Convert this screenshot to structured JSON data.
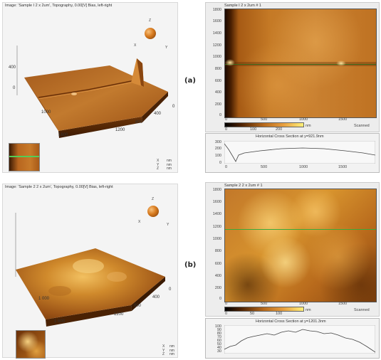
{
  "panel_a": {
    "label": "(a)",
    "surface3d": {
      "header": "Image: 'Sample I 2 x 2um', Topography, 0.00[V] Bias, left-right",
      "z_ticks": [
        "400",
        "0"
      ],
      "x_ticks": [
        "1000",
        "1600"
      ],
      "y_ticks": [
        "0",
        "400",
        "800",
        "1200"
      ],
      "orient": {
        "z": "Z",
        "x": "X",
        "y": "Y"
      },
      "units": [
        "X",
        "Y",
        "Z"
      ],
      "unit_values": [
        "nm",
        "nm",
        "nm"
      ]
    },
    "map": {
      "title": "Sample I 2 x 2um # 1",
      "y_ticks": [
        "1800",
        "1600",
        "1400",
        "1200",
        "1000",
        "800",
        "600",
        "400",
        "200",
        "0"
      ],
      "x_ticks": [
        "0",
        "500",
        "1000",
        "1500"
      ],
      "colorbar_ticks": [
        "0",
        "100",
        "200"
      ],
      "colorbar_unit": "nm",
      "scanned": "Scanned"
    },
    "cross_section": {
      "title": "Horizontal Cross Section at y=921.9nm",
      "y_ticks": [
        "300",
        "200",
        "100",
        "0"
      ],
      "x_ticks": [
        "0",
        "500",
        "1000",
        "1500"
      ]
    }
  },
  "panel_b": {
    "label": "(b)",
    "surface3d": {
      "header": "Image: 'Sample 2 2 x 2um', Topography, 0.00[V] Bias, left-right",
      "x_ticks": [
        "1 000",
        "1 600"
      ],
      "y_ticks": [
        "0",
        "400",
        "800",
        "1200"
      ],
      "orient": {
        "z": "Z",
        "x": "X",
        "y": "Y"
      },
      "units": [
        "X",
        "Y",
        "Z"
      ],
      "unit_values": [
        "nm",
        "nm",
        "nm"
      ]
    },
    "map": {
      "title": "Sample 2 2 x 2um # 1",
      "y_ticks": [
        "1800",
        "1600",
        "1400",
        "1200",
        "1000",
        "800",
        "600",
        "400",
        "200",
        "0"
      ],
      "x_ticks": [
        "0",
        "500",
        "1000",
        "1500"
      ],
      "colorbar_ticks": [
        "0",
        "50",
        "100"
      ],
      "colorbar_unit": "nm",
      "scanned": "Scanned"
    },
    "cross_section": {
      "title": "Horizontal Cross Section at y=1201.3nm",
      "y_ticks": [
        "100",
        "90",
        "80",
        "70",
        "60",
        "50",
        "40",
        "30"
      ],
      "x_ticks": [
        "0",
        "500",
        "1000",
        "1500"
      ]
    }
  }
}
